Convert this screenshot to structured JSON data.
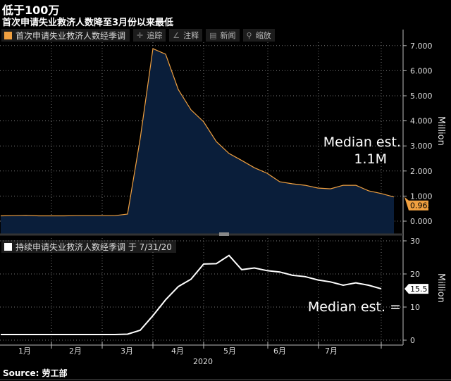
{
  "header": {
    "title": "低于100万",
    "subtitle": "首次申请失业救济人数降至3月份以来最低"
  },
  "toolbar": [
    {
      "icon": "crosshair-icon",
      "glyph": "✛",
      "label": "追踪"
    },
    {
      "icon": "pencil-icon",
      "glyph": "∠",
      "label": "注释"
    },
    {
      "icon": "news-icon",
      "glyph": "▤",
      "label": "新闻"
    },
    {
      "icon": "search-icon",
      "glyph": "⚲",
      "label": "缩放"
    }
  ],
  "source": "Source: 劳工部",
  "chart_data": [
    {
      "type": "area",
      "legend": "首次申请失业救济人数经季调",
      "ylabel": "Million",
      "ylim": [
        -0.5,
        7.5
      ],
      "yticks": [
        "0.000",
        "1.000",
        "2.000",
        "3.000",
        "4.000",
        "5.000",
        "6.000",
        "7.000"
      ],
      "grid": true,
      "color": "#f0a040",
      "fill": "#0a1e3a",
      "x": [
        "2020-01-04",
        "2020-01-11",
        "2020-01-18",
        "2020-01-25",
        "2020-02-01",
        "2020-02-08",
        "2020-02-15",
        "2020-02-22",
        "2020-02-29",
        "2020-03-07",
        "2020-03-14",
        "2020-03-21",
        "2020-03-28",
        "2020-04-04",
        "2020-04-11",
        "2020-04-18",
        "2020-04-25",
        "2020-05-02",
        "2020-05-09",
        "2020-05-16",
        "2020-05-23",
        "2020-05-30",
        "2020-06-06",
        "2020-06-13",
        "2020-06-20",
        "2020-06-27",
        "2020-07-04",
        "2020-07-11",
        "2020-07-18",
        "2020-07-25",
        "2020-08-01",
        "2020-08-08"
      ],
      "values": [
        0.21,
        0.22,
        0.23,
        0.21,
        0.21,
        0.21,
        0.22,
        0.22,
        0.22,
        0.22,
        0.28,
        3.3,
        6.88,
        6.66,
        5.25,
        4.44,
        3.96,
        3.17,
        2.7,
        2.42,
        2.13,
        1.91,
        1.57,
        1.49,
        1.43,
        1.32,
        1.29,
        1.43,
        1.43,
        1.21,
        1.1,
        0.963
      ],
      "last_value_label": "0.963",
      "annotation": [
        "Median est.",
        "1.1M"
      ]
    },
    {
      "type": "line",
      "legend": "持续申请失业救济人数经季调 于 7/31/20",
      "ylabel": "Million",
      "ylim": [
        -1,
        30.5
      ],
      "yticks": [
        "0",
        "10",
        "20",
        "30"
      ],
      "grid": true,
      "color": "#ffffff",
      "x": [
        "2020-01-04",
        "2020-01-11",
        "2020-01-18",
        "2020-01-25",
        "2020-02-01",
        "2020-02-08",
        "2020-02-15",
        "2020-02-22",
        "2020-02-29",
        "2020-03-07",
        "2020-03-14",
        "2020-03-21",
        "2020-03-28",
        "2020-04-04",
        "2020-04-11",
        "2020-04-18",
        "2020-04-25",
        "2020-05-02",
        "2020-05-09",
        "2020-05-16",
        "2020-05-23",
        "2020-05-30",
        "2020-06-06",
        "2020-06-13",
        "2020-06-20",
        "2020-06-27",
        "2020-07-04",
        "2020-07-11",
        "2020-07-18",
        "2020-07-25",
        "2020-08-01"
      ],
      "values": [
        1.7,
        1.7,
        1.7,
        1.7,
        1.7,
        1.7,
        1.7,
        1.7,
        1.7,
        1.7,
        1.8,
        3.0,
        7.4,
        12.2,
        16.2,
        18.4,
        23.0,
        23.1,
        25.6,
        21.3,
        21.8,
        21.0,
        20.6,
        19.6,
        19.2,
        18.2,
        17.6,
        16.6,
        17.3,
        16.6,
        15.5
      ],
      "last_value_label": "15.5",
      "annotation": [
        "Median est. ="
      ]
    }
  ],
  "xaxis": {
    "months": [
      "1月",
      "2月",
      "3月",
      "4月",
      "5月",
      "6月",
      "7月"
    ],
    "year": "2020"
  }
}
